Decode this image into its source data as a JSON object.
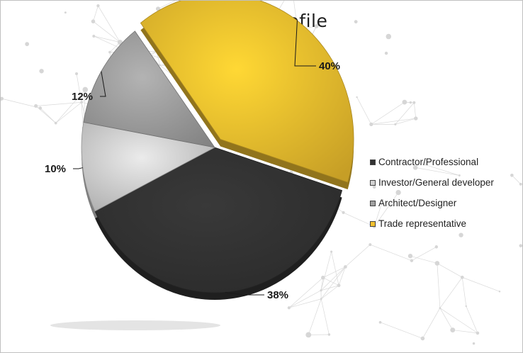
{
  "chart_data": {
    "type": "pie",
    "title": "Visitors profile",
    "categories": [
      "Contractor/Professional",
      "Investor/General developer",
      "Architect/Designer",
      "Trade representative"
    ],
    "values": [
      38,
      10,
      12,
      40
    ],
    "value_labels": [
      "38%",
      "10%",
      "12%",
      "40%"
    ],
    "colors": [
      "#333333",
      "#d2d2d2",
      "#a0a0a0",
      "#f2c12e"
    ],
    "exploded": "Trade representative",
    "legend_position": "right",
    "style": "3d"
  }
}
